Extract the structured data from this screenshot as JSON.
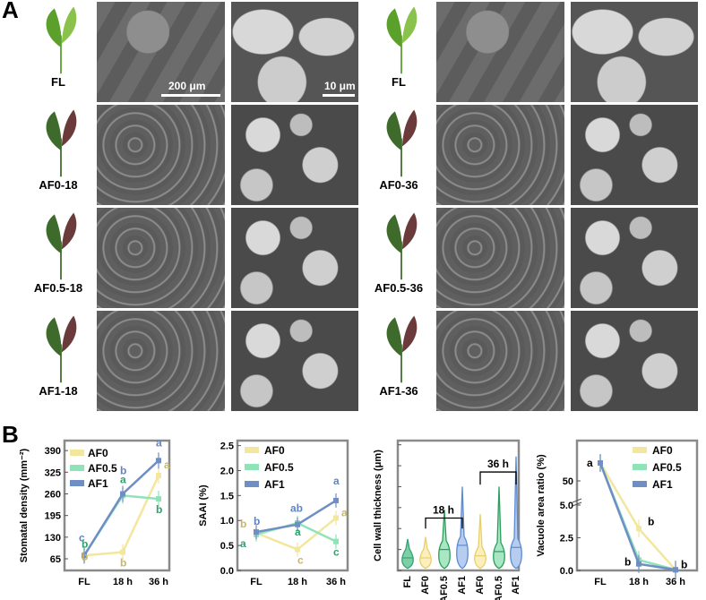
{
  "panel_a": {
    "label": "A",
    "scale_sem": "200 μm",
    "scale_tem": "10 μm",
    "left_rows": [
      "FL",
      "AF0-18",
      "AF0.5-18",
      "AF1-18"
    ],
    "right_rows": [
      "FL",
      "AF0-36",
      "AF0.5-36",
      "AF1-36"
    ]
  },
  "panel_b": {
    "label": "B"
  },
  "colors": {
    "AF0": "#f3e69d",
    "AF0.5": "#8ee3b9",
    "AF1": "#6f8fc4",
    "FL": "#35a374",
    "letter_AF0": "#c7b56a",
    "letter_AF05": "#2aa56a",
    "letter_AF1": "#5f84c4"
  },
  "chart_data": [
    {
      "type": "line",
      "ylabel": "Stomatal density (mm⁻²)",
      "categories": [
        "FL",
        "18 h",
        "36 h"
      ],
      "yticks": [
        "65",
        "130",
        "195",
        "260",
        "325",
        "390"
      ],
      "ylim": [
        30,
        420
      ],
      "legend": [
        "AF0",
        "AF0.5",
        "AF1"
      ],
      "series": [
        {
          "name": "AF0",
          "values": [
            75,
            85,
            315
          ],
          "letters": [
            "b",
            "b",
            "a"
          ]
        },
        {
          "name": "AF0.5",
          "values": [
            75,
            255,
            245
          ],
          "letters": [
            "b",
            "a",
            "b"
          ]
        },
        {
          "name": "AF1",
          "values": [
            75,
            260,
            360
          ],
          "letters": [
            "c",
            "b",
            "a"
          ]
        }
      ]
    },
    {
      "type": "line",
      "ylabel": "SAAI (%)",
      "categories": [
        "FL",
        "18 h",
        "36 h"
      ],
      "yticks": [
        "0.0",
        "0.5",
        "1.0",
        "1.5",
        "2.0",
        "2.5"
      ],
      "ylim": [
        0,
        2.6
      ],
      "legend": [
        "AF0",
        "AF0.5",
        "AF1"
      ],
      "series": [
        {
          "name": "AF0",
          "values": [
            0.75,
            0.42,
            1.05
          ],
          "letters": [
            "b",
            "c",
            "a"
          ]
        },
        {
          "name": "AF0.5",
          "values": [
            0.72,
            0.95,
            0.58
          ],
          "letters": [
            "a",
            "a",
            "c"
          ]
        },
        {
          "name": "AF1",
          "values": [
            0.77,
            0.92,
            1.4
          ],
          "letters": [
            "b",
            "ab",
            "a"
          ]
        }
      ]
    },
    {
      "type": "violin",
      "ylabel": "Cell wall thickness (μm)",
      "categories": [
        "FL",
        "AF0",
        "AF0.5",
        "AF1",
        "AF0",
        "AF0.5",
        "AF1"
      ],
      "yticks": [
        "0.0",
        "0.5",
        "1.0",
        "1.5",
        "2.0",
        "2.5",
        "3.0"
      ],
      "ylim": [
        0,
        3.1
      ],
      "groups": [
        "18 h",
        "36 h"
      ],
      "medians": [
        0.3,
        0.3,
        0.5,
        0.6,
        0.35,
        0.45,
        0.55
      ],
      "max": [
        0.75,
        0.8,
        1.45,
        2.0,
        1.35,
        2.0,
        2.72
      ]
    },
    {
      "type": "line",
      "ylabel": "Vacuole area ratio (%)",
      "categories": [
        "FL",
        "18 h",
        "36 h"
      ],
      "yticks": [
        "0.0",
        "2.5",
        "5.0",
        "50"
      ],
      "legend": [
        "AF0",
        "AF0.5",
        "AF1"
      ],
      "series": [
        {
          "name": "AF0",
          "values": [
            55,
            3.2,
            0.05
          ],
          "letters": [
            "a",
            "b",
            "b"
          ]
        },
        {
          "name": "AF0.5",
          "values": [
            55,
            0.8,
            0.05
          ],
          "letters": [
            "",
            "",
            ""
          ]
        },
        {
          "name": "AF1",
          "values": [
            55,
            0.5,
            0.05
          ],
          "letters": [
            "",
            "b",
            ""
          ]
        }
      ]
    }
  ]
}
